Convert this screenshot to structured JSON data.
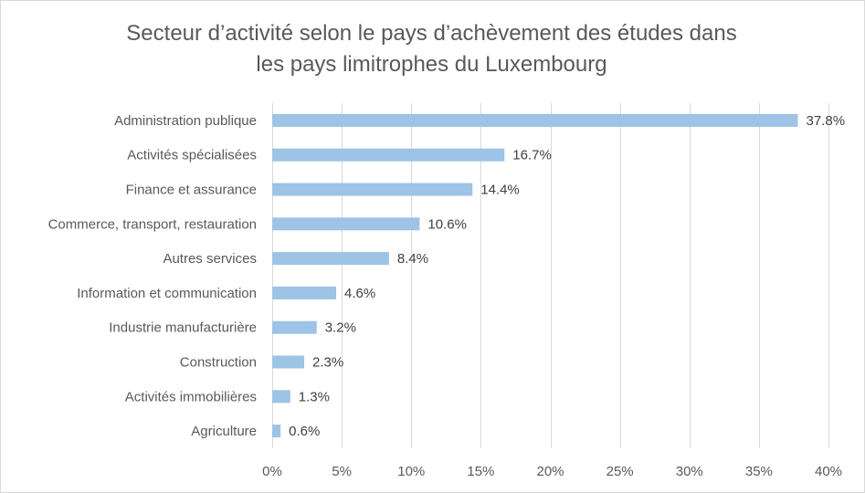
{
  "chart_data": {
    "type": "bar",
    "orientation": "horizontal",
    "title_line1": "Secteur d’activité selon le pays d’achèvement des études dans",
    "title_line2": "les pays limitrophes du Luxembourg",
    "categories": [
      "Administration publique",
      "Activités spécialisées",
      "Finance et assurance",
      "Commerce, transport, restauration",
      "Autres services",
      "Information et communication",
      "Industrie manufacturière",
      "Construction",
      "Activités immobilières",
      "Agriculture"
    ],
    "values": [
      37.8,
      16.7,
      14.4,
      10.6,
      8.4,
      4.6,
      3.2,
      2.3,
      1.3,
      0.6
    ],
    "value_labels": [
      "37.8%",
      "16.7%",
      "14.4%",
      "10.6%",
      "8.4%",
      "4.6%",
      "3.2%",
      "2.3%",
      "1.3%",
      "0.6%"
    ],
    "xlim": [
      0,
      40
    ],
    "xticks": [
      0,
      5,
      10,
      15,
      20,
      25,
      30,
      35,
      40
    ],
    "xtick_labels": [
      "0%",
      "5%",
      "10%",
      "15%",
      "20%",
      "25%",
      "30%",
      "35%",
      "40%"
    ],
    "grid": "vertical",
    "bar_color": "#9dc3e6",
    "grid_color": "#d9d9d9"
  }
}
